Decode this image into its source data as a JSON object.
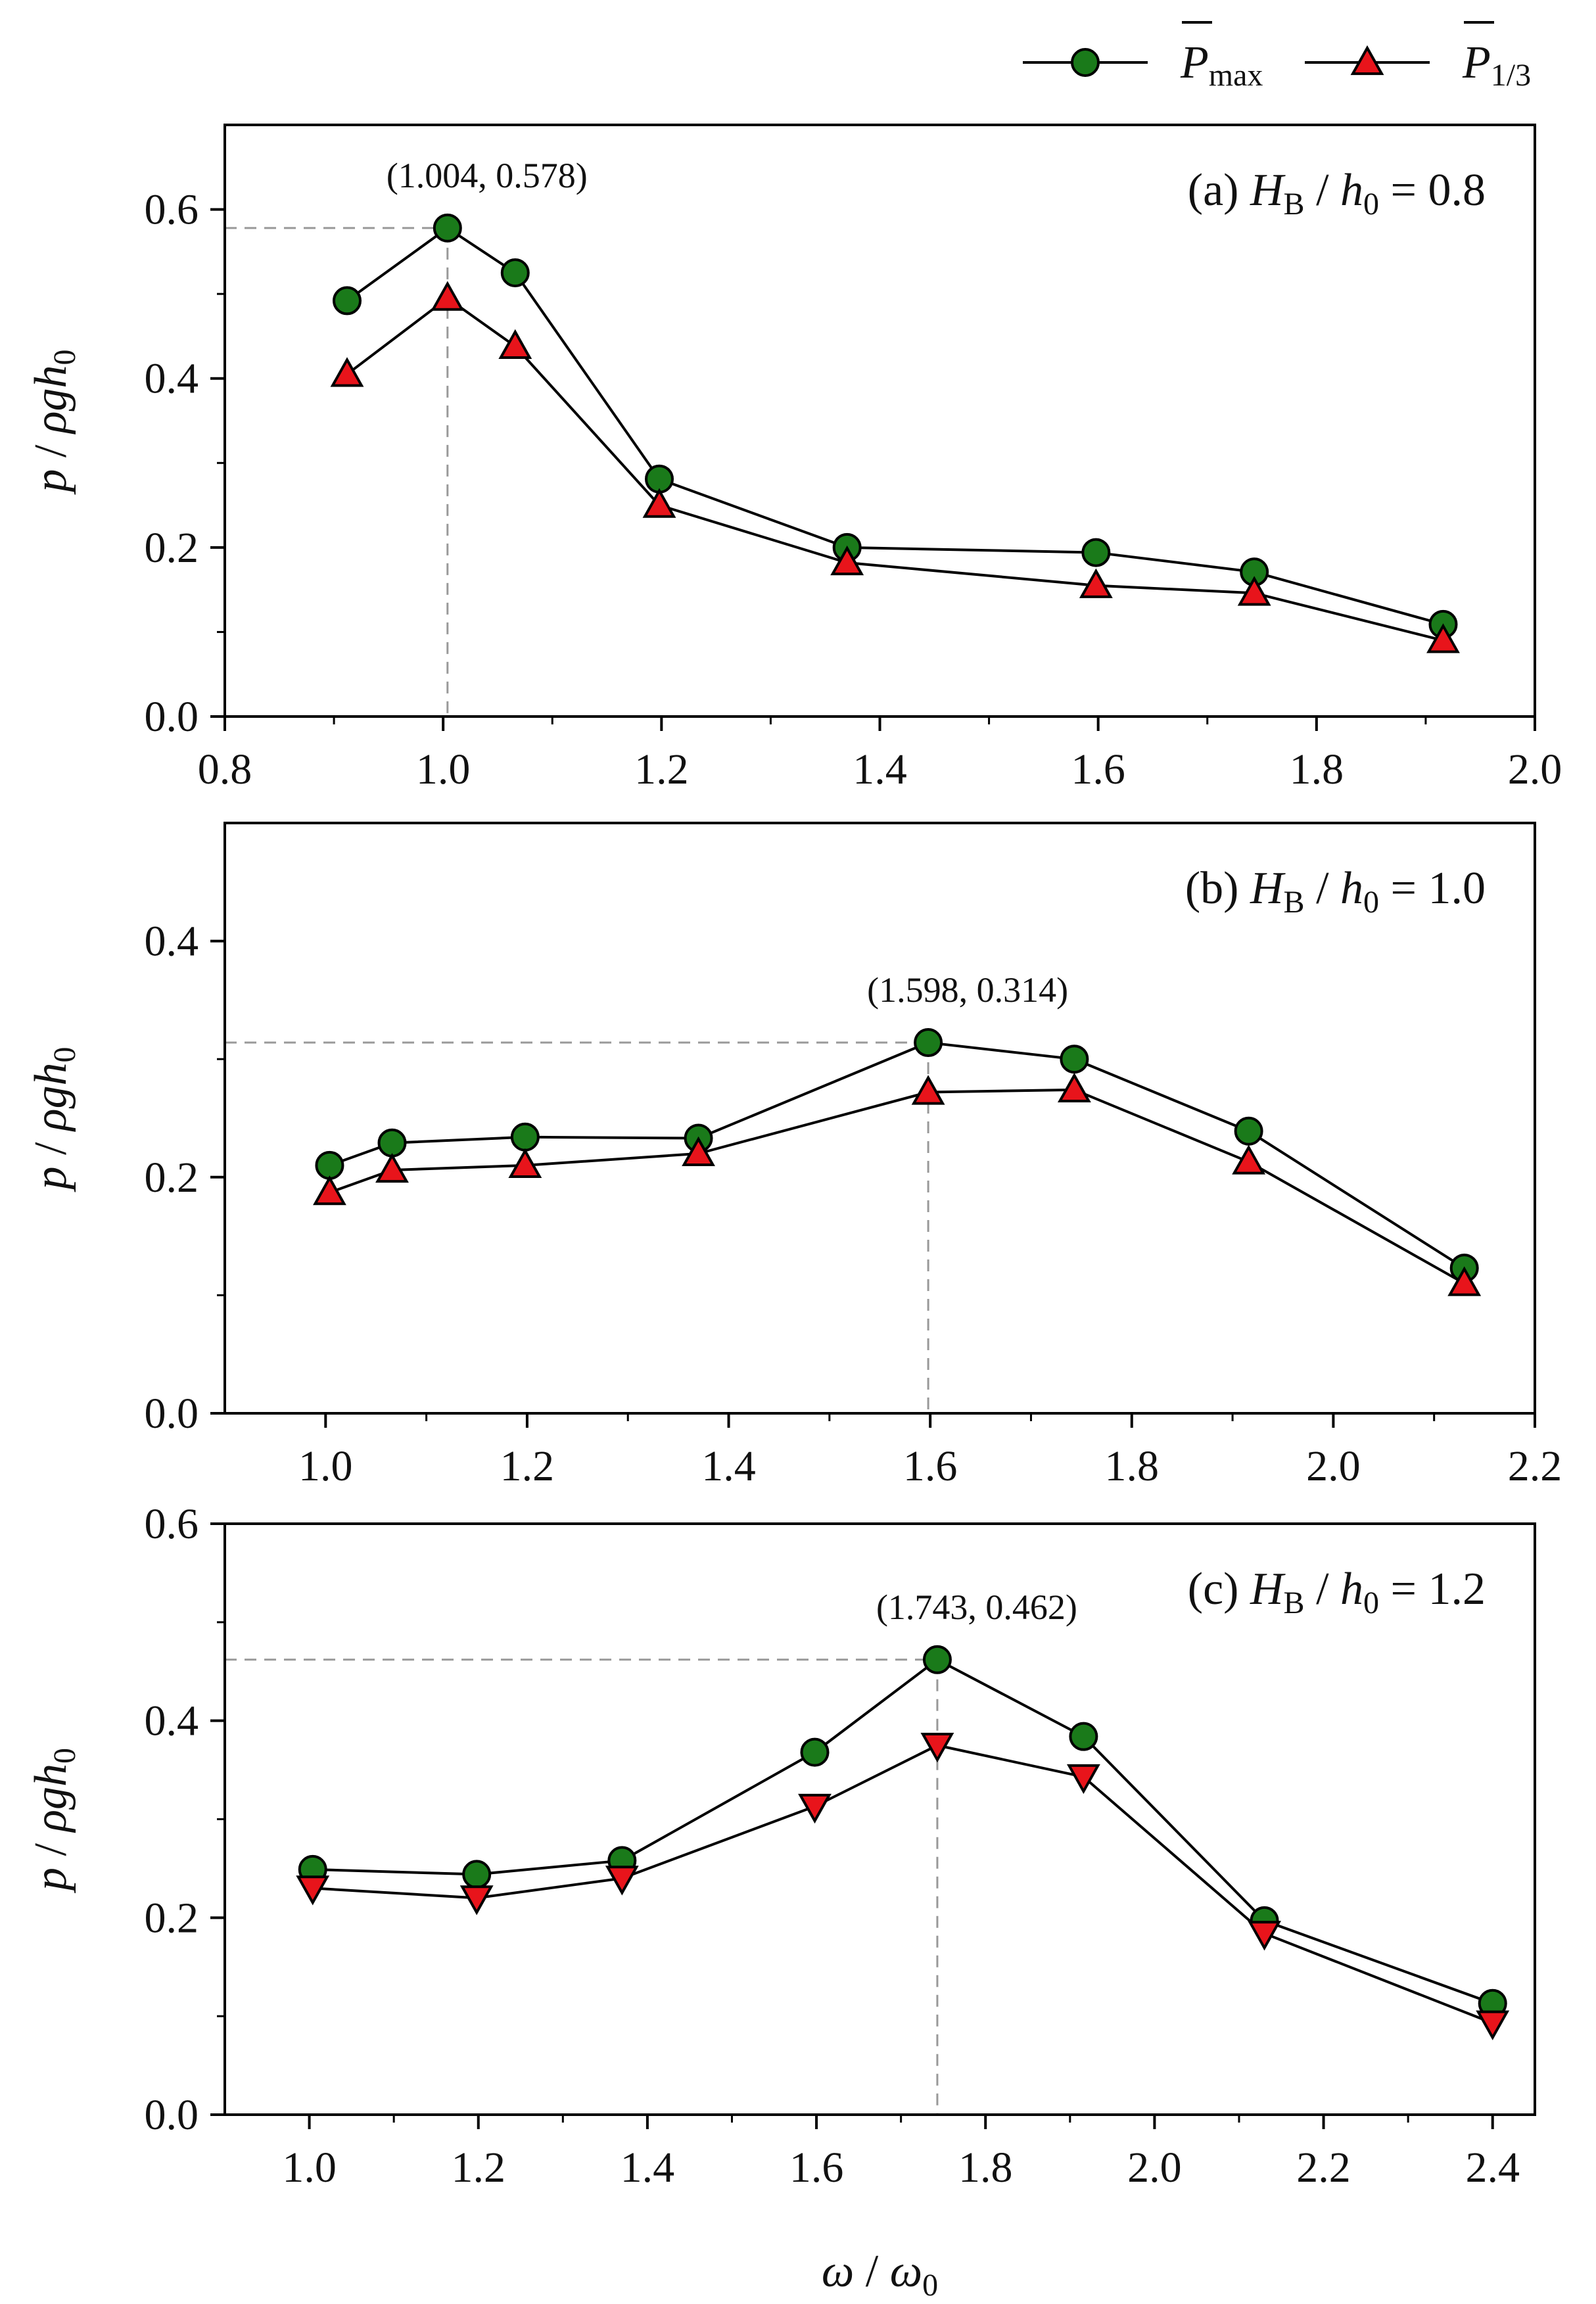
{
  "legend": {
    "items": [
      {
        "name": "P",
        "subscript": "max",
        "marker": "circle",
        "color": "#1a7a1a"
      },
      {
        "name": "P",
        "subscript": "1/3",
        "marker": "triangle-up",
        "color": "#e8141b"
      }
    ]
  },
  "colors": {
    "pmax": "#1a7a1a",
    "p13": "#e8141b",
    "axis": "#000000",
    "guide": "#999999"
  },
  "chart_data": [
    {
      "type": "line",
      "label": {
        "prefix": "(a)",
        "var": "H",
        "sub": "B",
        "mid": "/",
        "var2": "h",
        "sub2": "0",
        "eq": "= 0.8"
      },
      "ylabel": {
        "a": "p",
        "b": " / ",
        "c": "ρgh",
        "d": "0"
      },
      "xlim": [
        0.8,
        2.0
      ],
      "ylim": [
        0,
        0.7
      ],
      "xticks": [
        0.8,
        1.0,
        1.2,
        1.4,
        1.6,
        1.8,
        2.0
      ],
      "xtick_labels": [
        "0.8",
        "1.0",
        "1.2",
        "1.4",
        "1.6",
        "1.8",
        "2.0"
      ],
      "yticks": [
        0,
        0.2,
        0.4,
        0.6
      ],
      "ytick_labels": [
        "0.0",
        "0.2",
        "0.4",
        "0.6"
      ],
      "series": [
        {
          "name": "Pmax",
          "marker": "circle",
          "x": [
            0.912,
            1.004,
            1.066,
            1.198,
            1.37,
            1.598,
            1.743,
            1.916
          ],
          "y": [
            0.492,
            0.578,
            0.525,
            0.281,
            0.2,
            0.194,
            0.171,
            0.109
          ]
        },
        {
          "name": "P1/3",
          "marker": "triangle-up",
          "x": [
            0.912,
            1.004,
            1.066,
            1.198,
            1.37,
            1.598,
            1.743,
            1.916
          ],
          "y": [
            0.405,
            0.495,
            0.438,
            0.25,
            0.182,
            0.155,
            0.146,
            0.09
          ]
        }
      ],
      "annotation": {
        "x": 1.004,
        "y": 0.578,
        "text": "(1.004, 0.578)"
      }
    },
    {
      "type": "line",
      "label": {
        "prefix": "(b)",
        "var": "H",
        "sub": "B",
        "mid": "/",
        "var2": "h",
        "sub2": "0",
        "eq": "= 1.0"
      },
      "ylabel": {
        "a": "p",
        "b": " / ",
        "c": "ρgh",
        "d": "0"
      },
      "xlim": [
        0.9,
        2.2
      ],
      "ylim": [
        0,
        0.5
      ],
      "xticks": [
        1.0,
        1.2,
        1.4,
        1.6,
        1.8,
        2.0,
        2.2
      ],
      "xtick_labels": [
        "1.0",
        "1.2",
        "1.4",
        "1.6",
        "1.8",
        "2.0",
        "2.2"
      ],
      "yticks": [
        0,
        0.2,
        0.4
      ],
      "ytick_labels": [
        "0.0",
        "0.2",
        "0.4"
      ],
      "series": [
        {
          "name": "Pmax",
          "marker": "circle",
          "x": [
            1.004,
            1.066,
            1.198,
            1.37,
            1.598,
            1.743,
            1.916,
            2.13
          ],
          "y": [
            0.21,
            0.229,
            0.234,
            0.233,
            0.314,
            0.3,
            0.239,
            0.123
          ]
        },
        {
          "name": "P1/3",
          "marker": "triangle-up",
          "x": [
            1.004,
            1.066,
            1.198,
            1.37,
            1.598,
            1.743,
            1.916,
            2.13
          ],
          "y": [
            0.187,
            0.206,
            0.21,
            0.22,
            0.272,
            0.274,
            0.213,
            0.11
          ]
        }
      ],
      "annotation": {
        "x": 1.598,
        "y": 0.314,
        "text": "(1.598, 0.314)"
      }
    },
    {
      "type": "line",
      "label": {
        "prefix": "(c)",
        "var": "H",
        "sub": "B",
        "mid": "/",
        "var2": "h",
        "sub2": "0",
        "eq": "= 1.2"
      },
      "ylabel": {
        "a": "p",
        "b": " / ",
        "c": "ρgh",
        "d": "0"
      },
      "xlabel": {
        "a": "ω",
        "b": " / ",
        "c": "ω",
        "d": "0"
      },
      "xlim": [
        0.9,
        2.45
      ],
      "ylim": [
        0,
        0.6
      ],
      "xticks": [
        1.0,
        1.2,
        1.4,
        1.6,
        1.8,
        2.0,
        2.2,
        2.4
      ],
      "xtick_labels": [
        "1.0",
        "1.2",
        "1.4",
        "1.6",
        "1.8",
        "2.0",
        "2.2",
        "2.4"
      ],
      "yticks": [
        0,
        0.2,
        0.4,
        0.6
      ],
      "ytick_labels": [
        "0.0",
        "0.2",
        "0.4",
        "0.6"
      ],
      "series": [
        {
          "name": "Pmax",
          "marker": "circle",
          "x": [
            1.004,
            1.198,
            1.37,
            1.598,
            1.743,
            1.916,
            2.13,
            2.4
          ],
          "y": [
            0.249,
            0.244,
            0.258,
            0.368,
            0.462,
            0.384,
            0.197,
            0.113
          ]
        },
        {
          "name": "P1/3",
          "marker": "triangle-down",
          "x": [
            1.004,
            1.198,
            1.37,
            1.598,
            1.743,
            1.916,
            2.13,
            2.4
          ],
          "y": [
            0.23,
            0.22,
            0.24,
            0.313,
            0.375,
            0.343,
            0.184,
            0.093
          ]
        }
      ],
      "annotation": {
        "x": 1.743,
        "y": 0.462,
        "text": "(1.743, 0.462)"
      }
    }
  ]
}
